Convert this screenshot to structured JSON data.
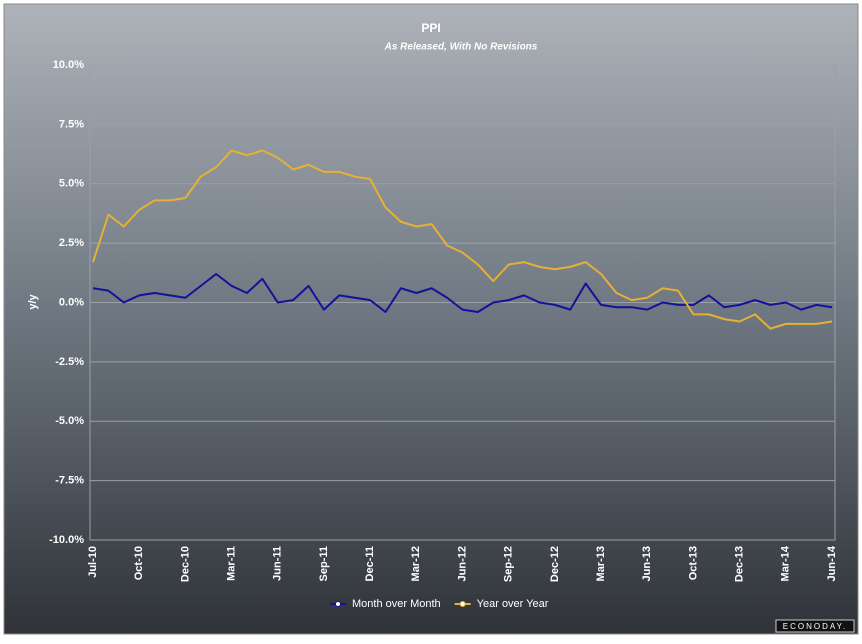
{
  "chart_data": {
    "type": "line",
    "title": "PPI",
    "subtitle": "As Released, With No Revisions",
    "y_label": "y/y",
    "brand": "ECONODAY.",
    "categories": [
      "Jul-10",
      null,
      null,
      "Oct-10",
      null,
      null,
      "Dec-10",
      null,
      null,
      "Mar-11",
      null,
      null,
      "Jun-11",
      null,
      null,
      "Sep-11",
      null,
      null,
      "Dec-11",
      null,
      null,
      "Mar-12",
      null,
      null,
      "Jun-12",
      null,
      null,
      "Sep-12",
      null,
      null,
      "Dec-12",
      null,
      null,
      "Mar-13",
      null,
      null,
      "Jun-13",
      null,
      null,
      "Oct-13",
      null,
      null,
      "Dec-13",
      null,
      null,
      "Mar-14",
      null,
      null,
      "Jun-14"
    ],
    "series": [
      {
        "name": "Month over Month",
        "color": "#12129a",
        "values": [
          0.6,
          0.5,
          0.0,
          0.3,
          0.4,
          0.3,
          0.2,
          0.7,
          1.2,
          0.7,
          0.4,
          1.0,
          0.0,
          0.1,
          0.7,
          -0.3,
          0.3,
          0.2,
          0.1,
          -0.4,
          0.6,
          0.4,
          0.6,
          0.2,
          -0.3,
          -0.4,
          0.0,
          0.1,
          0.3,
          0.0,
          -0.1,
          -0.3,
          0.8,
          -0.1,
          -0.2,
          -0.2,
          -0.3,
          0.0,
          -0.1,
          -0.1,
          0.3,
          -0.2,
          -0.1,
          0.1,
          -0.1,
          0.0,
          -0.3,
          -0.1,
          -0.2
        ]
      },
      {
        "name": "Year over Year",
        "color": "#e6b036",
        "values": [
          1.7,
          3.7,
          3.2,
          3.9,
          4.3,
          4.3,
          4.4,
          5.3,
          5.7,
          6.4,
          6.2,
          6.4,
          6.1,
          5.6,
          5.8,
          5.5,
          5.5,
          5.3,
          5.2,
          4.0,
          3.4,
          3.2,
          3.3,
          2.4,
          2.1,
          1.6,
          0.9,
          1.6,
          1.7,
          1.5,
          1.4,
          1.5,
          1.7,
          1.2,
          0.4,
          0.1,
          0.2,
          0.6,
          0.5,
          -0.5,
          -0.5,
          -0.7,
          -0.8,
          -0.5,
          -1.1,
          -0.9,
          -0.9,
          -0.9,
          -0.8
        ]
      }
    ],
    "ylim": [
      -10,
      10
    ],
    "yticks": [
      {
        "value": -10,
        "label": "-10.0%"
      },
      {
        "value": -7.5,
        "label": "-7.5%"
      },
      {
        "value": -5,
        "label": "-5.0%"
      },
      {
        "value": -2.5,
        "label": "-2.5%"
      },
      {
        "value": 0,
        "label": "0.0%"
      },
      {
        "value": 2.5,
        "label": "2.5%"
      },
      {
        "value": 5,
        "label": "5.0%"
      },
      {
        "value": 7.5,
        "label": "7.5%"
      },
      {
        "value": 10,
        "label": "10.0%"
      }
    ],
    "grid": true,
    "legend": "bottom"
  }
}
